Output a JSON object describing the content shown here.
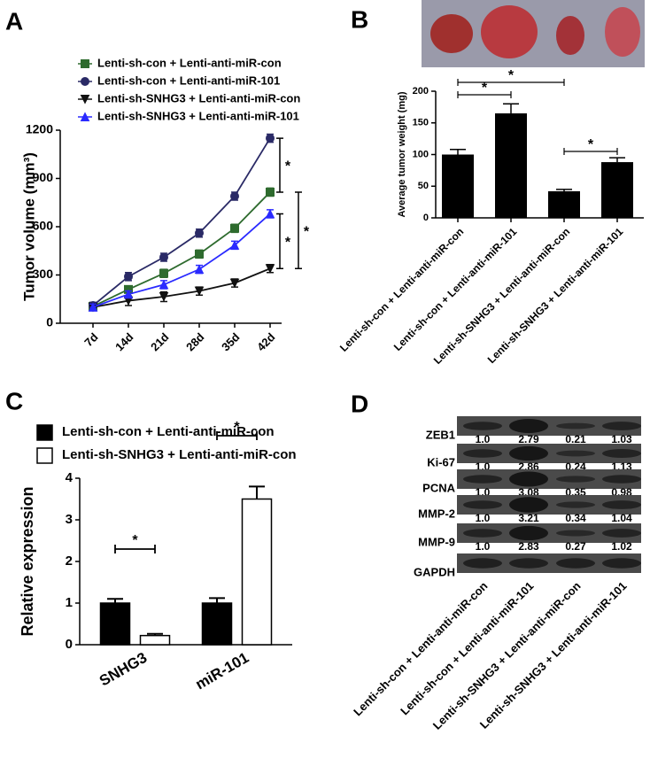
{
  "chart_data": [
    {
      "type": "line",
      "panel": "A",
      "y_label": "Tumor volume (mm³)",
      "categories": [
        "7d",
        "14d",
        "21d",
        "28d",
        "35d",
        "42d"
      ],
      "ylim": [
        0,
        1200
      ],
      "yticks": [
        0,
        300,
        600,
        900,
        1200
      ],
      "series": [
        {
          "name": "Lenti-sh-con + Lenti-anti-miR-con",
          "color": "#2e6b2e",
          "marker": "square",
          "values": [
            105,
            210,
            310,
            430,
            590,
            815
          ],
          "errors": [
            20,
            20,
            25,
            25,
            25,
            25
          ]
        },
        {
          "name": "Lenti-sh-con + Lenti-anti-miR-101",
          "color": "#2a2a66",
          "marker": "circle",
          "values": [
            110,
            290,
            410,
            560,
            790,
            1150
          ],
          "errors": [
            20,
            25,
            25,
            25,
            25,
            25
          ]
        },
        {
          "name": "Lenti-sh-SNHG3 + Lenti-anti-miR-con",
          "color": "#111111",
          "marker": "triangle-down",
          "values": [
            100,
            140,
            165,
            200,
            250,
            340
          ],
          "errors": [
            20,
            30,
            30,
            25,
            25,
            25
          ]
        },
        {
          "name": "Lenti-sh-SNHG3 + Lenti-anti-miR-101",
          "color": "#2a2aff",
          "marker": "triangle-up",
          "values": [
            100,
            180,
            240,
            335,
            485,
            680
          ],
          "errors": [
            20,
            20,
            25,
            25,
            25,
            25
          ]
        }
      ],
      "annotations": [
        "*",
        "*",
        "*"
      ]
    },
    {
      "type": "bar",
      "panel": "B",
      "y_label": "Average tumor weight (mg)",
      "categories": [
        "Lenti-sh-con + Lenti-anti-miR-con",
        "Lenti-sh-con + Lenti-anti-miR-101",
        "Lenti-sh-SNHG3 + Lenti-anti-miR-con",
        "Lenti-sh-SNHG3 + Lenti-anti-miR-101"
      ],
      "values": [
        100,
        165,
        42,
        88
      ],
      "errors": [
        8,
        15,
        3,
        7
      ],
      "color": "#000000",
      "ylim": [
        0,
        200
      ],
      "yticks": [
        0,
        50,
        100,
        150,
        200
      ],
      "annotations": [
        "*",
        "*",
        "*"
      ]
    },
    {
      "type": "grouped-bar",
      "panel": "C",
      "y_label": "Relative expression",
      "categories": [
        "SNHG3",
        "miR-101"
      ],
      "series": [
        {
          "name": "Lenti-sh-con + Lenti-anti-miR-con",
          "color": "#000000",
          "values": [
            1.0,
            1.0
          ],
          "errors": [
            0.1,
            0.12
          ]
        },
        {
          "name": "Lenti-sh-SNHG3 + Lenti-anti-miR-con",
          "color": "#ffffff",
          "values": [
            0.22,
            3.5
          ],
          "errors": [
            0.04,
            0.3
          ]
        }
      ],
      "ylim": [
        0,
        4
      ],
      "yticks": [
        0,
        1,
        2,
        3,
        4
      ],
      "annotations": [
        "*",
        "*"
      ]
    }
  ],
  "blot": {
    "panel": "D",
    "rows": [
      {
        "name": "ZEB1",
        "values": [
          "1.0",
          "2.79",
          "0.21",
          "1.03"
        ]
      },
      {
        "name": "Ki-67",
        "values": [
          "1.0",
          "2.86",
          "0.24",
          "1.13"
        ]
      },
      {
        "name": "PCNA",
        "values": [
          "1.0",
          "3.08",
          "0.35",
          "0.98"
        ]
      },
      {
        "name": "MMP-2",
        "values": [
          "1.0",
          "3.21",
          "0.34",
          "1.04"
        ]
      },
      {
        "name": "MMP-9",
        "values": [
          "1.0",
          "2.83",
          "0.27",
          "1.02"
        ]
      },
      {
        "name": "GAPDH",
        "values": []
      }
    ],
    "columns": [
      "Lenti-sh-con + Lenti-anti-miR-con",
      "Lenti-sh-con + Lenti-anti-miR-101",
      "Lenti-sh-SNHG3 + Lenti-anti-miR-con",
      "Lenti-sh-SNHG3 + Lenti-anti-miR-101"
    ]
  }
}
